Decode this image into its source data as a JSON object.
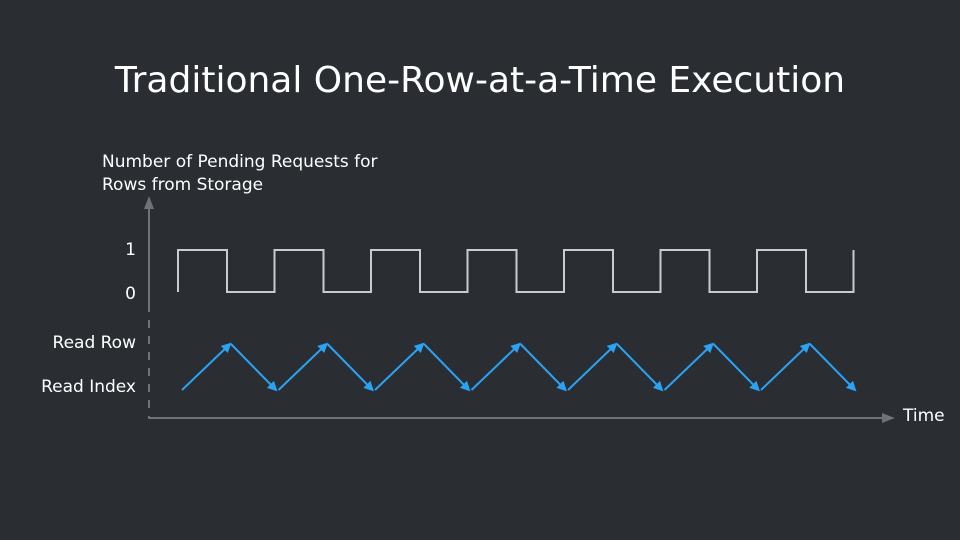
{
  "title": "Traditional One-Row-at-a-Time Execution",
  "y_axis_label_line1": "Number of Pending Requests for",
  "y_axis_label_line2": "Rows from Storage",
  "x_axis_label": "Time",
  "pending_levels": {
    "high": "1",
    "low": "0"
  },
  "operation_levels": {
    "high": "Read Row",
    "low": "Read Index"
  },
  "colors": {
    "background": "#2a2e33",
    "text": "#ffffff",
    "axis": "#6e7378",
    "square_wave": "#c9ccce",
    "arrows": "#2aa3f5"
  },
  "cycles": 7
}
